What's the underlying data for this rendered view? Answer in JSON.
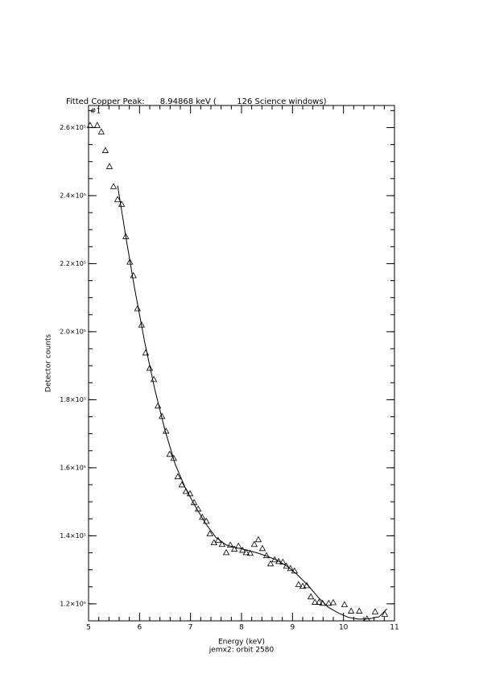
{
  "chart_data": {
    "type": "scatter",
    "title": "Fitted Copper Peak:      8.94868 keV (        126 Science windows)",
    "plot_label": "#1",
    "x_label": "Energy (keV)",
    "subtitle": "jemx2: orbit 2580",
    "y_label": "Detector counts",
    "xlim": [
      5,
      11
    ],
    "xticks": [
      5,
      6,
      7,
      8,
      9,
      10,
      11
    ],
    "xminor": 5,
    "ylim": [
      115000,
      266500
    ],
    "yticks": [
      {
        "value": 120000,
        "label": "1.2×10⁵"
      },
      {
        "value": 140000,
        "label": "1.4×10⁵"
      },
      {
        "value": 160000,
        "label": "1.6×10⁵"
      },
      {
        "value": 180000,
        "label": "1.8×10⁵"
      },
      {
        "value": 200000,
        "label": "2.0×10⁵"
      },
      {
        "value": 220000,
        "label": "2.2×10⁵"
      },
      {
        "value": 240000,
        "label": "2.4×10⁵"
      },
      {
        "value": 260000,
        "label": "2.6×10⁵"
      }
    ],
    "yminor": 4,
    "series": [
      {
        "marker": "triangle",
        "color": "#000000",
        "x": [
          5.03,
          5.17,
          5.25,
          5.33,
          5.41,
          5.49,
          5.57,
          5.65,
          5.73,
          5.81,
          5.88,
          5.96,
          6.04,
          6.12,
          6.2,
          6.28,
          6.36,
          6.44,
          6.52,
          6.59,
          6.67,
          6.75,
          6.83,
          6.91,
          6.99,
          7.07,
          7.15,
          7.23,
          7.31,
          7.38,
          7.46,
          7.54,
          7.62,
          7.7,
          7.78,
          7.86,
          7.94,
          8.02,
          8.09,
          8.17,
          8.25,
          8.33,
          8.41,
          8.49,
          8.57,
          8.65,
          8.73,
          8.81,
          8.88,
          8.96,
          9.04,
          9.12,
          9.2,
          9.28,
          9.36,
          9.44,
          9.52,
          9.59,
          9.71,
          9.8,
          10.02,
          10.15,
          10.31,
          10.46,
          10.62,
          10.81
        ],
        "values": [
          260700,
          260700,
          258800,
          253300,
          248600,
          242700,
          238900,
          237500,
          228000,
          220500,
          216500,
          206800,
          202000,
          193800,
          189300,
          186000,
          178200,
          175100,
          170800,
          164000,
          162800,
          157400,
          155000,
          153100,
          152400,
          149800,
          147900,
          145500,
          144300,
          140600,
          138000,
          138700,
          137500,
          135100,
          137300,
          136100,
          137000,
          135800,
          135100,
          134900,
          137500,
          138900,
          136300,
          134200,
          131800,
          133000,
          132500,
          132300,
          131100,
          130400,
          129700,
          125700,
          125200,
          125400,
          122100,
          120500,
          120500,
          120200,
          120200,
          120400,
          119800,
          117900,
          117900,
          115600,
          117700,
          117000
        ]
      },
      {
        "marker": "line",
        "color": "#000000",
        "x": [
          5.57,
          5.73,
          5.9,
          6.1,
          6.3,
          6.5,
          6.7,
          6.9,
          7.1,
          7.3,
          7.5,
          7.7,
          7.9,
          8.1,
          8.3,
          8.5,
          8.7,
          8.9,
          9.1,
          9.3,
          9.5,
          9.7,
          9.9,
          10.1,
          10.3,
          10.5,
          10.7,
          10.85
        ],
        "values": [
          243000,
          228000,
          213000,
          197000,
          183000,
          171000,
          161000,
          154000,
          148500,
          143500,
          139500,
          137300,
          136500,
          135800,
          135000,
          134000,
          132800,
          131000,
          128500,
          125500,
          122000,
          119000,
          117300,
          116000,
          115500,
          115600,
          116200,
          118500
        ]
      }
    ]
  }
}
